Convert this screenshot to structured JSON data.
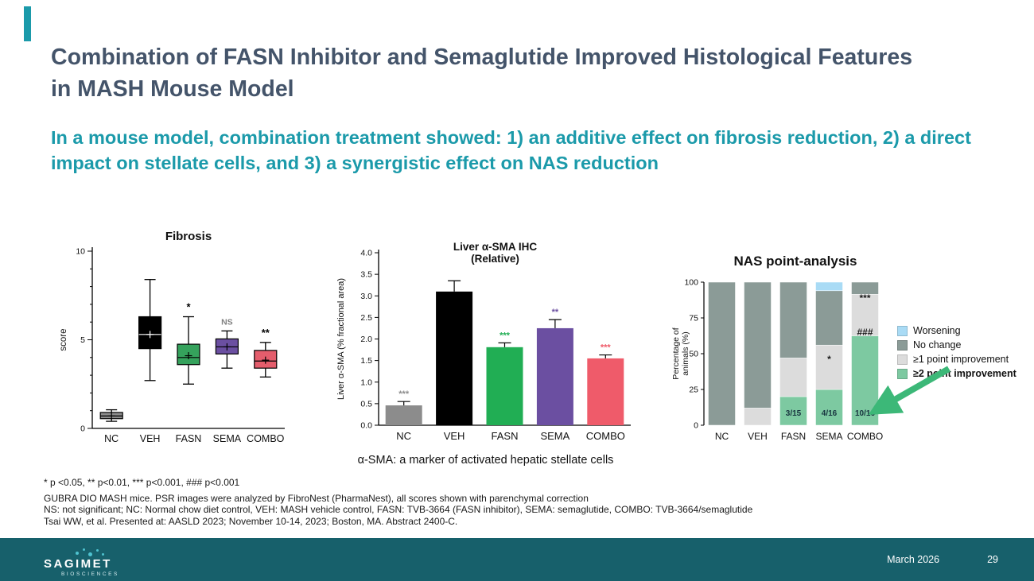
{
  "slide": {
    "title": "Combination of FASN Inhibitor and Semaglutide Improved Histological Features in MASH Mouse Model",
    "subtitle": "In a mouse model, combination treatment showed: 1) an additive effect on fibrosis reduction, 2) a direct impact on stellate cells, and 3) a synergistic effect on NAS reduction",
    "accent_color": "#1b9aaa",
    "title_color": "#44546a"
  },
  "chart_data": [
    {
      "type": "box",
      "title": "Fibrosis",
      "ylabel": "score",
      "xlabel": "",
      "ylim": [
        0,
        10
      ],
      "yticks": [
        0,
        5,
        10
      ],
      "categories": [
        "NC",
        "VEH",
        "FASN",
        "SEMA",
        "COMBO"
      ],
      "boxes": [
        {
          "category": "NC",
          "whisker_low": 0.4,
          "q1": 0.55,
          "median": 0.7,
          "mean": 0.7,
          "q3": 0.9,
          "whisker_high": 1.05,
          "color": "#8c8c8c",
          "annotation": "",
          "annotation_color": "#000000"
        },
        {
          "category": "VEH",
          "whisker_low": 2.7,
          "q1": 4.5,
          "median": 5.3,
          "mean": 5.3,
          "q3": 6.3,
          "whisker_high": 8.4,
          "color": "#000000",
          "annotation": "",
          "annotation_color": "#000000"
        },
        {
          "category": "FASN",
          "whisker_low": 2.5,
          "q1": 3.6,
          "median": 4.0,
          "mean": 4.1,
          "q3": 4.75,
          "whisker_high": 6.3,
          "color": "#35a25c",
          "annotation": "*",
          "annotation_color": "#000000"
        },
        {
          "category": "SEMA",
          "whisker_low": 3.4,
          "q1": 4.2,
          "median": 4.6,
          "mean": 4.6,
          "q3": 5.05,
          "whisker_high": 5.5,
          "color": "#6b4fa1",
          "annotation": "NS",
          "annotation_color": "#808080"
        },
        {
          "category": "COMBO",
          "whisker_low": 2.9,
          "q1": 3.4,
          "median": 3.8,
          "mean": 3.85,
          "q3": 4.4,
          "whisker_high": 4.85,
          "color": "#e45d6c",
          "annotation": "**",
          "annotation_color": "#000000"
        }
      ]
    },
    {
      "type": "bar",
      "title": "Liver α-SMA IHC",
      "subtitle": "(Relative)",
      "ylabel": "Liver α-SMA (% fractional area)",
      "xlabel": "",
      "ylim": [
        0,
        4.0
      ],
      "ytick_step": 0.5,
      "categories": [
        "NC",
        "VEH",
        "FASN",
        "SEMA",
        "COMBO"
      ],
      "values": [
        0.46,
        3.1,
        1.81,
        2.25,
        1.55
      ],
      "errors": [
        0.09,
        0.25,
        0.1,
        0.2,
        0.08
      ],
      "colors": [
        "#8c8c8c",
        "#000000",
        "#21ae54",
        "#6b4fa1",
        "#ef5b6a"
      ],
      "annotations": [
        "***",
        "",
        "***",
        "**",
        "***"
      ],
      "caption": "α-SMA: a marker of activated hepatic stellate cells"
    },
    {
      "type": "stacked-bar",
      "title": "NAS point-analysis",
      "ylabel_lines": [
        "Percentage of",
        "animals (%)"
      ],
      "xlabel": "",
      "ylim": [
        0,
        100
      ],
      "yticks": [
        0,
        25,
        50,
        75,
        100
      ],
      "categories": [
        "NC",
        "VEH",
        "FASN",
        "SEMA",
        "COMBO"
      ],
      "series": [
        {
          "name": "≥2 point improvement",
          "color": "#7dc9a1",
          "values": [
            0,
            0,
            20,
            25,
            62.5
          ]
        },
        {
          "name": "≥1 point improvement",
          "color": "#dcdcdc",
          "values": [
            0,
            12,
            27,
            31,
            29
          ]
        },
        {
          "name": "No change",
          "color": "#8b9b97",
          "values": [
            100,
            88,
            53,
            38,
            8.5
          ]
        },
        {
          "name": "Worsening",
          "color": "#a9dbf5",
          "values": [
            0,
            0,
            0,
            6,
            0
          ]
        }
      ],
      "bar_labels": [
        "",
        "",
        "3/15",
        "4/16",
        "10/16"
      ],
      "annotations": [
        {
          "category": "SEMA",
          "text": "*",
          "y": 46,
          "color": "#1a1a1a"
        },
        {
          "category": "COMBO",
          "text": "***",
          "y": 89,
          "color": "#1a1a1a"
        },
        {
          "category": "COMBO",
          "text": "###",
          "y": 65,
          "color": "#1a1a1a"
        }
      ],
      "legend": [
        {
          "label": "Worsening",
          "color": "#a9dbf5",
          "bold": false
        },
        {
          "label": "No change",
          "color": "#8b9b97",
          "bold": false
        },
        {
          "label": "≥1 point improvement",
          "color": "#dcdcdc",
          "bold": false
        },
        {
          "label": "≥2 point improvement",
          "color": "#7dc9a1",
          "bold": true
        }
      ]
    }
  ],
  "footnotes": [
    "* p <0.05, ** p<0.01, *** p<0.001, ### p<0.001",
    "GUBRA DIO MASH mice. PSR images were analyzed by FibroNest (PharmaNest), all scores shown with parenchymal correction",
    "NS: not significant; NC: Normal chow diet control, VEH: MASH vehicle control, FASN: TVB-3664 (FASN inhibitor), SEMA: semaglutide, COMBO: TVB-3664/semaglutide",
    "Tsai WW, et al. Presented at: AASLD 2023; November 10-14, 2023; Boston, MA. Abstract 2400-C."
  ],
  "footer": {
    "logo_text": "SAGIMET",
    "logo_subtext": "BIOSCIENCES",
    "date": "March 2026",
    "page": "29",
    "bar_color": "#17606b"
  }
}
